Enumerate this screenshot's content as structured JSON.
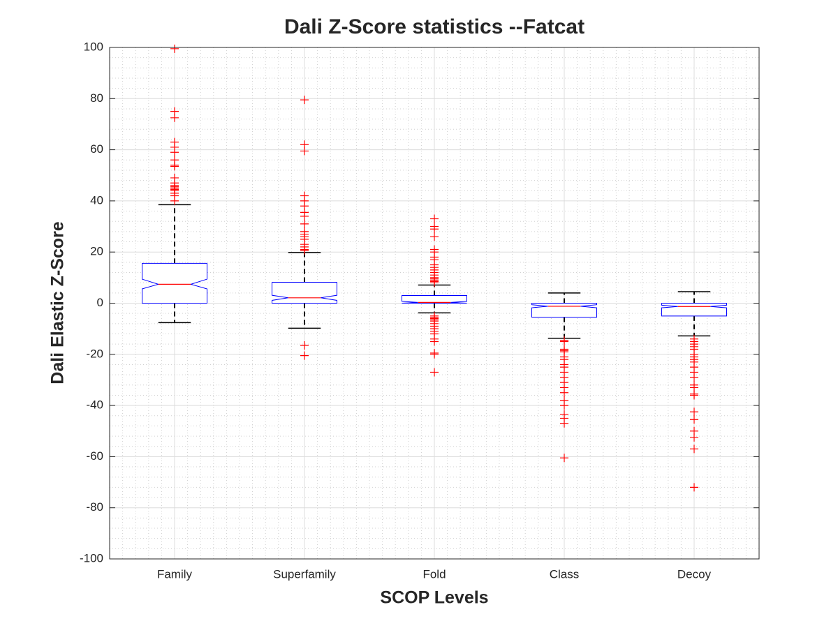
{
  "chart_data": {
    "type": "box",
    "title": "Dali Z-Score statistics --Fatcat",
    "xlabel": "SCOP Levels",
    "ylabel": "Dali Elastic Z-Score",
    "categories": [
      "Family",
      "Superfamily",
      "Fold",
      "Class",
      "Decoy"
    ],
    "ylim": [
      -100,
      100
    ],
    "yticks": [
      -100,
      -80,
      -60,
      -40,
      -20,
      0,
      20,
      40,
      60,
      80,
      100
    ],
    "grid": true,
    "minor_grid": true,
    "notched": true,
    "box_color": "#0000ff",
    "median_color": "#ff0000",
    "whisker_color": "#000000",
    "outlier_color": "#ff0000",
    "boxes": [
      {
        "whisker_low": -7.6,
        "q1": 0,
        "notch_low": 5.6,
        "median": 7.4,
        "notch_high": 9.4,
        "q3": 15.6,
        "whisker_high": 38.5,
        "outliers": [
          99.5,
          75,
          72.5,
          63,
          61,
          59,
          56,
          54,
          53.5,
          49,
          47,
          46,
          45.5,
          45,
          44.5,
          44,
          43,
          42,
          40
        ]
      },
      {
        "whisker_low": -9.8,
        "q1": 0,
        "notch_low": 1.1,
        "median": 2.1,
        "notch_high": 3.1,
        "q3": 8.2,
        "whisker_high": 19.8,
        "outliers": [
          79.5,
          62,
          59.5,
          42,
          40,
          38,
          35.5,
          34,
          31,
          28,
          27,
          26,
          25,
          23,
          22,
          21,
          20.5,
          -16.5,
          -20.5
        ]
      },
      {
        "whisker_low": -3.8,
        "q1": 0,
        "notch_low": 0,
        "median": 0.3,
        "notch_high": 0.7,
        "q3": 3,
        "whisker_high": 7.1,
        "outliers": [
          33,
          30,
          29,
          26,
          21,
          20,
          18,
          17,
          15,
          14,
          13,
          12,
          11,
          10,
          9.5,
          9,
          8.5,
          8,
          -5,
          -5.5,
          -6,
          -6.5,
          -7,
          -8,
          -9,
          -10,
          -11,
          -12,
          -14,
          -15,
          -19.5,
          -20,
          -27
        ]
      },
      {
        "whisker_low": -13.7,
        "q1": -5.5,
        "notch_low": -1.8,
        "median": -1.2,
        "notch_high": -0.6,
        "q3": 0,
        "whisker_high": 4,
        "outliers": [
          -14.5,
          -15,
          -18,
          -18.5,
          -19,
          -21,
          -22,
          -24,
          -25,
          -27,
          -29,
          -31,
          -33,
          -35,
          -38,
          -40,
          -43.5,
          -45,
          -47,
          -60.5
        ]
      },
      {
        "whisker_low": -12.8,
        "q1": -5,
        "notch_low": -1.8,
        "median": -1.3,
        "notch_high": -0.8,
        "q3": 0,
        "whisker_high": 4.5,
        "outliers": [
          -14,
          -15,
          -16,
          -17,
          -18,
          -20,
          -21,
          -22,
          -23,
          -25,
          -27,
          -29,
          -32,
          -33,
          -35.5,
          -36,
          -42.5,
          -45.5,
          -50,
          -52.5,
          -57,
          -72
        ]
      }
    ]
  }
}
